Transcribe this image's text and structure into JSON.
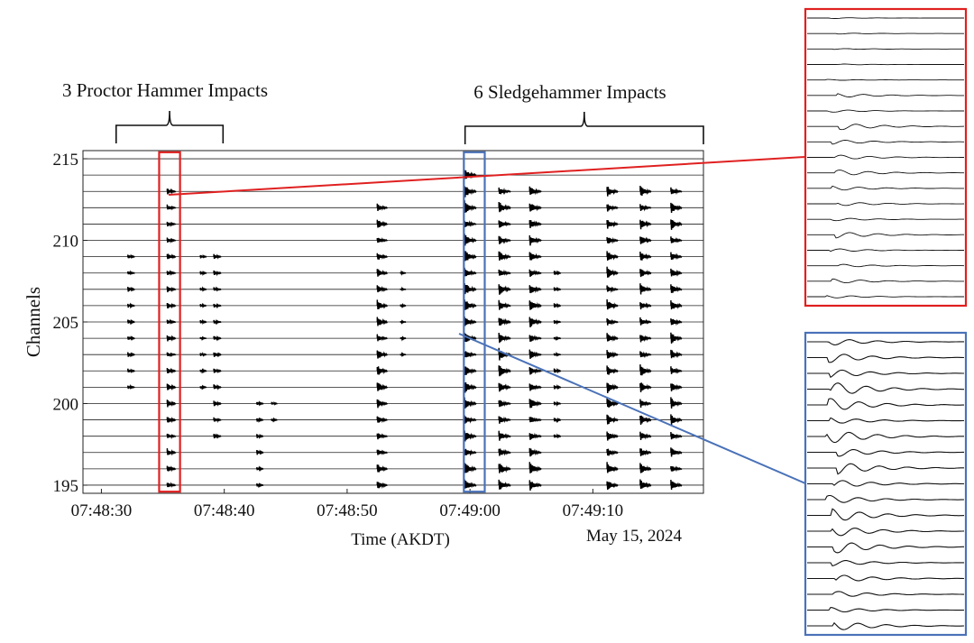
{
  "chart_data": {
    "type": "line",
    "title": "",
    "xlabel": "Time (AKDT)",
    "ylabel": "Channels",
    "date_label": "May 15, 2024",
    "x_range_seconds": [
      -1.5,
      49
    ],
    "x_origin": "07:48:30",
    "x_ticks": [
      {
        "t": 0,
        "label": "07:48:30"
      },
      {
        "t": 10,
        "label": "07:48:40"
      },
      {
        "t": 20,
        "label": "07:48:50"
      },
      {
        "t": 30,
        "label": "07:49:00"
      },
      {
        "t": 40,
        "label": "07:49:10"
      }
    ],
    "y_range": [
      194.5,
      215.5
    ],
    "y_ticks": [
      195,
      200,
      205,
      210,
      215
    ],
    "channels": [
      195,
      196,
      197,
      198,
      199,
      200,
      201,
      202,
      203,
      204,
      205,
      206,
      207,
      208,
      209,
      210,
      211,
      212,
      213,
      214,
      215
    ],
    "events": [
      {
        "t": 2.3,
        "amp": 0.4,
        "channels": [
          201,
          209
        ]
      },
      {
        "t": 5.5,
        "amp": 0.6,
        "channels": [
          195,
          213
        ]
      },
      {
        "t": 8.2,
        "amp": 0.3,
        "channels": [
          201,
          209
        ]
      },
      {
        "t": 9.3,
        "amp": 0.45,
        "channels": [
          198,
          209
        ]
      },
      {
        "t": 12.8,
        "amp": 0.35,
        "channels": [
          195,
          200
        ]
      },
      {
        "t": 14.0,
        "amp": 0.25,
        "channels": [
          199,
          200
        ]
      },
      {
        "t": 22.6,
        "amp": 0.8,
        "channels": [
          195,
          212
        ]
      },
      {
        "t": 24.5,
        "amp": 0.2,
        "channels": [
          203,
          208
        ]
      },
      {
        "t": 29.7,
        "amp": 1.0,
        "channels": [
          195,
          214
        ]
      },
      {
        "t": 32.5,
        "amp": 1.0,
        "channels": [
          195,
          213
        ]
      },
      {
        "t": 35.0,
        "amp": 1.0,
        "channels": [
          195,
          213
        ]
      },
      {
        "t": 37.0,
        "amp": 0.35,
        "channels": [
          198,
          208
        ]
      },
      {
        "t": 41.3,
        "amp": 0.9,
        "channels": [
          195,
          213
        ]
      },
      {
        "t": 44.0,
        "amp": 0.9,
        "channels": [
          195,
          213
        ]
      },
      {
        "t": 46.5,
        "amp": 0.9,
        "channels": [
          195,
          213
        ]
      }
    ],
    "annotations": [
      {
        "text": "3 Proctor Hammer Impacts",
        "t_start": 1.2,
        "t_end": 9.9
      },
      {
        "text": "6 Sledgehammer Impacts",
        "t_start": 29.6,
        "t_end": 49.0
      }
    ],
    "highlight_boxes": [
      {
        "name": "proctor-box",
        "color": "#e02020",
        "t_start": 4.7,
        "t_end": 6.4,
        "ch_low": 194.6,
        "ch_high": 215.4
      },
      {
        "name": "sledge-box",
        "color": "#4a72b8",
        "t_start": 29.5,
        "t_end": 31.2,
        "ch_low": 194.6,
        "ch_high": 215.4
      }
    ],
    "insets": [
      {
        "name": "red-inset",
        "color": "#e02020",
        "traces": 19
      },
      {
        "name": "blue-inset",
        "color": "#4a72b8",
        "traces": 19
      }
    ]
  }
}
